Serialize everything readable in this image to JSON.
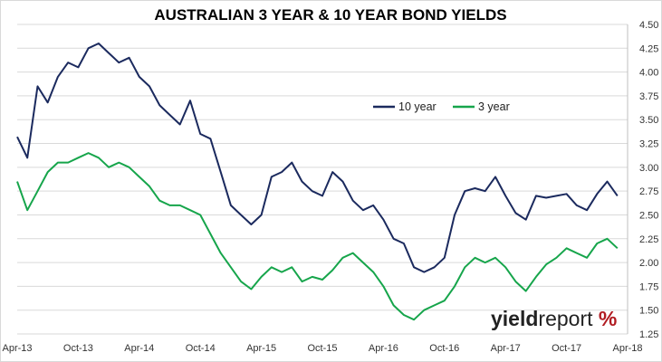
{
  "chart_data": {
    "type": "line",
    "title": "AUSTRALIAN 3 YEAR & 10 YEAR BOND YIELDS",
    "xlabel": "",
    "ylabel": "",
    "x_ticks": [
      "Apr-13",
      "Oct-13",
      "Apr-14",
      "Oct-14",
      "Apr-15",
      "Oct-15",
      "Apr-16",
      "Oct-16",
      "Apr-17",
      "Oct-17",
      "Apr-18"
    ],
    "y_ticks": [
      "1.25",
      "1.50",
      "1.75",
      "2.00",
      "2.25",
      "2.50",
      "2.75",
      "3.00",
      "3.25",
      "3.50",
      "3.75",
      "4.00",
      "4.25",
      "4.50"
    ],
    "ylim": [
      1.25,
      4.5
    ],
    "grid": "horizontal",
    "legend_position": "top-center",
    "x": [
      "Apr-13",
      "May-13",
      "Jun-13",
      "Jul-13",
      "Aug-13",
      "Sep-13",
      "Oct-13",
      "Nov-13",
      "Dec-13",
      "Jan-14",
      "Feb-14",
      "Mar-14",
      "Apr-14",
      "May-14",
      "Jun-14",
      "Jul-14",
      "Aug-14",
      "Sep-14",
      "Oct-14",
      "Nov-14",
      "Dec-14",
      "Jan-15",
      "Feb-15",
      "Mar-15",
      "Apr-15",
      "May-15",
      "Jun-15",
      "Jul-15",
      "Aug-15",
      "Sep-15",
      "Oct-15",
      "Nov-15",
      "Dec-15",
      "Jan-16",
      "Feb-16",
      "Mar-16",
      "Apr-16",
      "May-16",
      "Jun-16",
      "Jul-16",
      "Aug-16",
      "Sep-16",
      "Oct-16",
      "Nov-16",
      "Dec-16",
      "Jan-17",
      "Feb-17",
      "Mar-17",
      "Apr-17",
      "May-17",
      "Jun-17",
      "Jul-17",
      "Aug-17",
      "Sep-17",
      "Oct-17",
      "Nov-17",
      "Dec-17",
      "Jan-18",
      "Feb-18",
      "Mar-18"
    ],
    "series": [
      {
        "name": "10 year",
        "color": "#1b2a5e",
        "values": [
          3.32,
          3.1,
          3.85,
          3.68,
          3.95,
          4.1,
          4.05,
          4.25,
          4.3,
          4.2,
          4.1,
          4.15,
          3.95,
          3.85,
          3.65,
          3.55,
          3.45,
          3.7,
          3.35,
          3.3,
          2.95,
          2.6,
          2.5,
          2.4,
          2.5,
          2.9,
          2.95,
          3.05,
          2.85,
          2.75,
          2.7,
          2.95,
          2.85,
          2.65,
          2.55,
          2.6,
          2.45,
          2.25,
          2.2,
          1.95,
          1.9,
          1.95,
          2.05,
          2.5,
          2.75,
          2.78,
          2.75,
          2.9,
          2.7,
          2.52,
          2.45,
          2.7,
          2.68,
          2.7,
          2.72,
          2.6,
          2.55,
          2.72,
          2.85,
          2.7
        ]
      },
      {
        "name": "3 year",
        "color": "#16a54b",
        "values": [
          2.85,
          2.55,
          2.75,
          2.95,
          3.05,
          3.05,
          3.1,
          3.15,
          3.1,
          3.0,
          3.05,
          3.0,
          2.9,
          2.8,
          2.65,
          2.6,
          2.6,
          2.55,
          2.5,
          2.3,
          2.1,
          1.95,
          1.8,
          1.72,
          1.85,
          1.95,
          1.9,
          1.95,
          1.8,
          1.85,
          1.82,
          1.92,
          2.05,
          2.1,
          2.0,
          1.9,
          1.75,
          1.55,
          1.45,
          1.4,
          1.5,
          1.55,
          1.6,
          1.75,
          1.95,
          2.05,
          2.0,
          2.05,
          1.95,
          1.8,
          1.7,
          1.85,
          1.98,
          2.05,
          2.15,
          2.1,
          2.05,
          2.2,
          2.25,
          2.15
        ]
      }
    ]
  },
  "brand": {
    "part1": "yield",
    "part2": "report",
    "part3": " %"
  }
}
